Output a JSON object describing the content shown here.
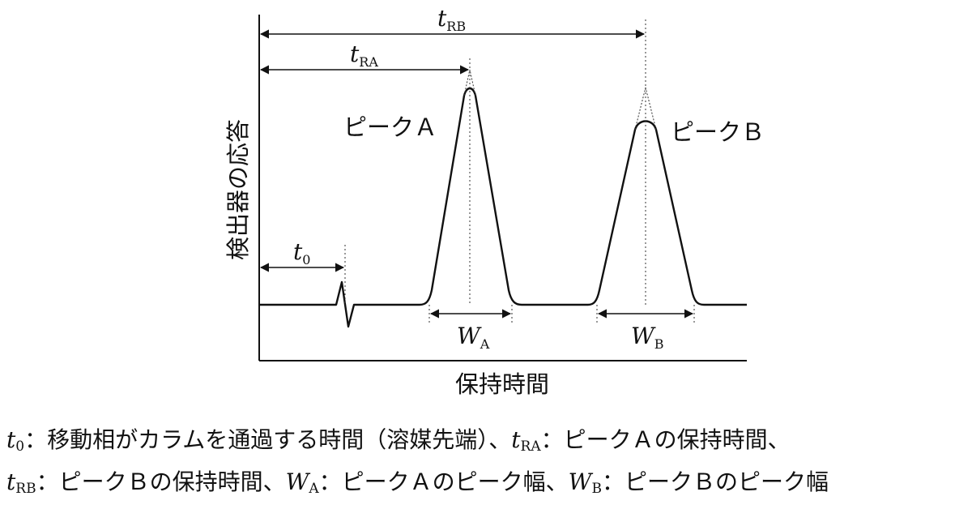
{
  "diagram": {
    "y_axis_label": "検出器の応答",
    "x_axis_label": "保持時間",
    "peak_a_label": "ピークＡ",
    "peak_b_label": "ピークＢ",
    "t0": {
      "var": "t",
      "sub": "0"
    },
    "tRA": {
      "var": "t",
      "sub": "RA"
    },
    "tRB": {
      "var": "t",
      "sub": "RB"
    },
    "WA": {
      "var": "W",
      "sub": "A"
    },
    "WB": {
      "var": "W",
      "sub": "B"
    }
  },
  "legend": {
    "line1": [
      {
        "var": "t",
        "sub": "0"
      },
      {
        "text": "：移動相がカラムを通過する時間（溶媒先端）、"
      },
      {
        "var": "t",
        "sub": "RA"
      },
      {
        "text": "：ピークＡの保持時間、"
      }
    ],
    "line2": [
      {
        "var": "t",
        "sub": "RB"
      },
      {
        "text": "：ピークＢの保持時間、"
      },
      {
        "var": "W",
        "sub": "A"
      },
      {
        "text": "：ピークＡのピーク幅、"
      },
      {
        "var": "W",
        "sub": "B"
      },
      {
        "text": "：ピークＢのピーク幅"
      }
    ]
  }
}
